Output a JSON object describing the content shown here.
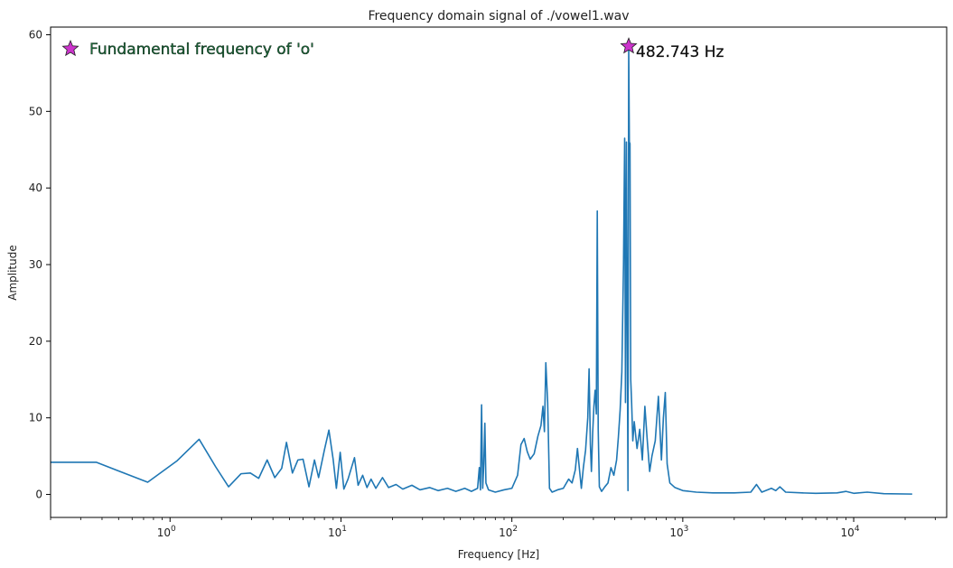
{
  "chart_data": {
    "type": "line",
    "title": "Frequency domain signal of ./vowel1.wav",
    "xlabel": "Frequency [Hz]",
    "ylabel": "Amplitude",
    "xscale": "log",
    "xlim": [
      0.2,
      35000
    ],
    "ylim": [
      -3,
      61
    ],
    "grid": false,
    "legend": "none",
    "x_ticks": [
      {
        "value": 1,
        "base": "10",
        "exp": "0"
      },
      {
        "value": 10,
        "base": "10",
        "exp": "1"
      },
      {
        "value": 100,
        "base": "10",
        "exp": "2"
      },
      {
        "value": 1000,
        "base": "10",
        "exp": "3"
      },
      {
        "value": 10000,
        "base": "10",
        "exp": "4"
      }
    ],
    "y_ticks": [
      0,
      10,
      20,
      30,
      40,
      50,
      60
    ],
    "series": [
      {
        "color": "#1f77b4",
        "points": [
          [
            0.2,
            4.2
          ],
          [
            0.37,
            4.2
          ],
          [
            0.74,
            1.6
          ],
          [
            1.1,
            4.4
          ],
          [
            1.48,
            7.2
          ],
          [
            1.85,
            3.6
          ],
          [
            2.2,
            1.0
          ],
          [
            2.6,
            2.7
          ],
          [
            2.95,
            2.8
          ],
          [
            3.3,
            2.1
          ],
          [
            3.7,
            4.5
          ],
          [
            4.1,
            2.2
          ],
          [
            4.5,
            3.4
          ],
          [
            4.8,
            6.8
          ],
          [
            5.2,
            2.8
          ],
          [
            5.6,
            4.5
          ],
          [
            6.0,
            4.6
          ],
          [
            6.5,
            1.0
          ],
          [
            7.0,
            4.5
          ],
          [
            7.4,
            2.2
          ],
          [
            8.0,
            5.8
          ],
          [
            8.5,
            8.4
          ],
          [
            9.0,
            4.6
          ],
          [
            9.4,
            0.8
          ],
          [
            9.9,
            5.5
          ],
          [
            10.4,
            0.7
          ],
          [
            11.0,
            2.0
          ],
          [
            12.0,
            4.8
          ],
          [
            12.6,
            1.2
          ],
          [
            13.4,
            2.5
          ],
          [
            14.2,
            0.9
          ],
          [
            15.0,
            2.0
          ],
          [
            16.0,
            0.8
          ],
          [
            17.5,
            2.2
          ],
          [
            19.0,
            0.9
          ],
          [
            21.0,
            1.3
          ],
          [
            23.0,
            0.7
          ],
          [
            26.0,
            1.2
          ],
          [
            29.0,
            0.6
          ],
          [
            33.0,
            0.9
          ],
          [
            37.0,
            0.5
          ],
          [
            42.0,
            0.8
          ],
          [
            47.0,
            0.4
          ],
          [
            53.0,
            0.8
          ],
          [
            58.0,
            0.4
          ],
          [
            63.0,
            0.8
          ],
          [
            64.5,
            3.5
          ],
          [
            65.5,
            0.6
          ],
          [
            66.5,
            11.7
          ],
          [
            67.5,
            0.8
          ],
          [
            68.5,
            4.0
          ],
          [
            69.5,
            9.3
          ],
          [
            70.5,
            1.5
          ],
          [
            73.0,
            0.6
          ],
          [
            80.0,
            0.3
          ],
          [
            90.0,
            0.6
          ],
          [
            100.0,
            0.8
          ],
          [
            108.0,
            2.5
          ],
          [
            113.0,
            6.5
          ],
          [
            118.0,
            7.3
          ],
          [
            123.0,
            5.6
          ],
          [
            128.0,
            4.6
          ],
          [
            135.0,
            5.3
          ],
          [
            142.0,
            7.6
          ],
          [
            148.0,
            9.0
          ],
          [
            152.0,
            11.5
          ],
          [
            155.0,
            8.2
          ],
          [
            158.0,
            17.2
          ],
          [
            162.0,
            12.0
          ],
          [
            166.0,
            0.8
          ],
          [
            172.0,
            0.3
          ],
          [
            185.0,
            0.6
          ],
          [
            200.0,
            0.8
          ],
          [
            215.0,
            2.0
          ],
          [
            225.0,
            1.5
          ],
          [
            235.0,
            3.2
          ],
          [
            242.0,
            6.0
          ],
          [
            248.0,
            3.5
          ],
          [
            255.0,
            0.8
          ],
          [
            262.0,
            3.5
          ],
          [
            270.0,
            5.8
          ],
          [
            278.0,
            10.0
          ],
          [
            283.0,
            16.4
          ],
          [
            288.0,
            6.5
          ],
          [
            292.0,
            3.0
          ],
          [
            297.0,
            8.0
          ],
          [
            302.0,
            11.5
          ],
          [
            307.0,
            13.6
          ],
          [
            312.0,
            10.5
          ],
          [
            316.0,
            37.0
          ],
          [
            320.0,
            8.5
          ],
          [
            325.0,
            1.0
          ],
          [
            335.0,
            0.4
          ],
          [
            350.0,
            1.0
          ],
          [
            365.0,
            1.5
          ],
          [
            380.0,
            3.5
          ],
          [
            395.0,
            2.5
          ],
          [
            410.0,
            4.5
          ],
          [
            420.0,
            7.5
          ],
          [
            430.0,
            11.0
          ],
          [
            440.0,
            16.0
          ],
          [
            450.0,
            30.0
          ],
          [
            457.0,
            46.5
          ],
          [
            462.0,
            12.0
          ],
          [
            468.0,
            46.0
          ],
          [
            473.0,
            22.0
          ],
          [
            478.0,
            0.5
          ],
          [
            482.7,
            58.5
          ],
          [
            487.0,
            46.0
          ],
          [
            491.0,
            45.8
          ],
          [
            496.0,
            15.0
          ],
          [
            502.0,
            12.0
          ],
          [
            510.0,
            7.0
          ],
          [
            520.0,
            9.5
          ],
          [
            540.0,
            6.0
          ],
          [
            560.0,
            8.5
          ],
          [
            580.0,
            4.5
          ],
          [
            600.0,
            11.5
          ],
          [
            620.0,
            7.0
          ],
          [
            640.0,
            3.0
          ],
          [
            660.0,
            5.0
          ],
          [
            690.0,
            7.0
          ],
          [
            720.0,
            12.8
          ],
          [
            750.0,
            4.5
          ],
          [
            770.0,
            10.0
          ],
          [
            790.0,
            13.3
          ],
          [
            810.0,
            4.0
          ],
          [
            840.0,
            1.5
          ],
          [
            900.0,
            0.9
          ],
          [
            1000.0,
            0.5
          ],
          [
            1200.0,
            0.3
          ],
          [
            1500.0,
            0.2
          ],
          [
            2000.0,
            0.2
          ],
          [
            2500.0,
            0.3
          ],
          [
            2700.0,
            1.3
          ],
          [
            2900.0,
            0.3
          ],
          [
            3300.0,
            0.8
          ],
          [
            3500.0,
            0.5
          ],
          [
            3700.0,
            1.0
          ],
          [
            4000.0,
            0.3
          ],
          [
            5000.0,
            0.2
          ],
          [
            6000.0,
            0.15
          ],
          [
            8000.0,
            0.2
          ],
          [
            9000.0,
            0.4
          ],
          [
            10000.0,
            0.15
          ],
          [
            12000.0,
            0.3
          ],
          [
            15000.0,
            0.1
          ],
          [
            22000.0,
            0.05
          ]
        ]
      }
    ],
    "annotations": [
      {
        "type": "marker-label",
        "marker": "star",
        "color": "#cc33cc",
        "text": "Fundamental frequency of 'o'",
        "text_color": "#1a6b3a",
        "location": "upper-left"
      },
      {
        "type": "point-label",
        "marker": "star",
        "color": "#cc33cc",
        "x": 482.743,
        "y": 58.5,
        "text": "482.743 Hz",
        "text_color": "#111111"
      }
    ]
  }
}
